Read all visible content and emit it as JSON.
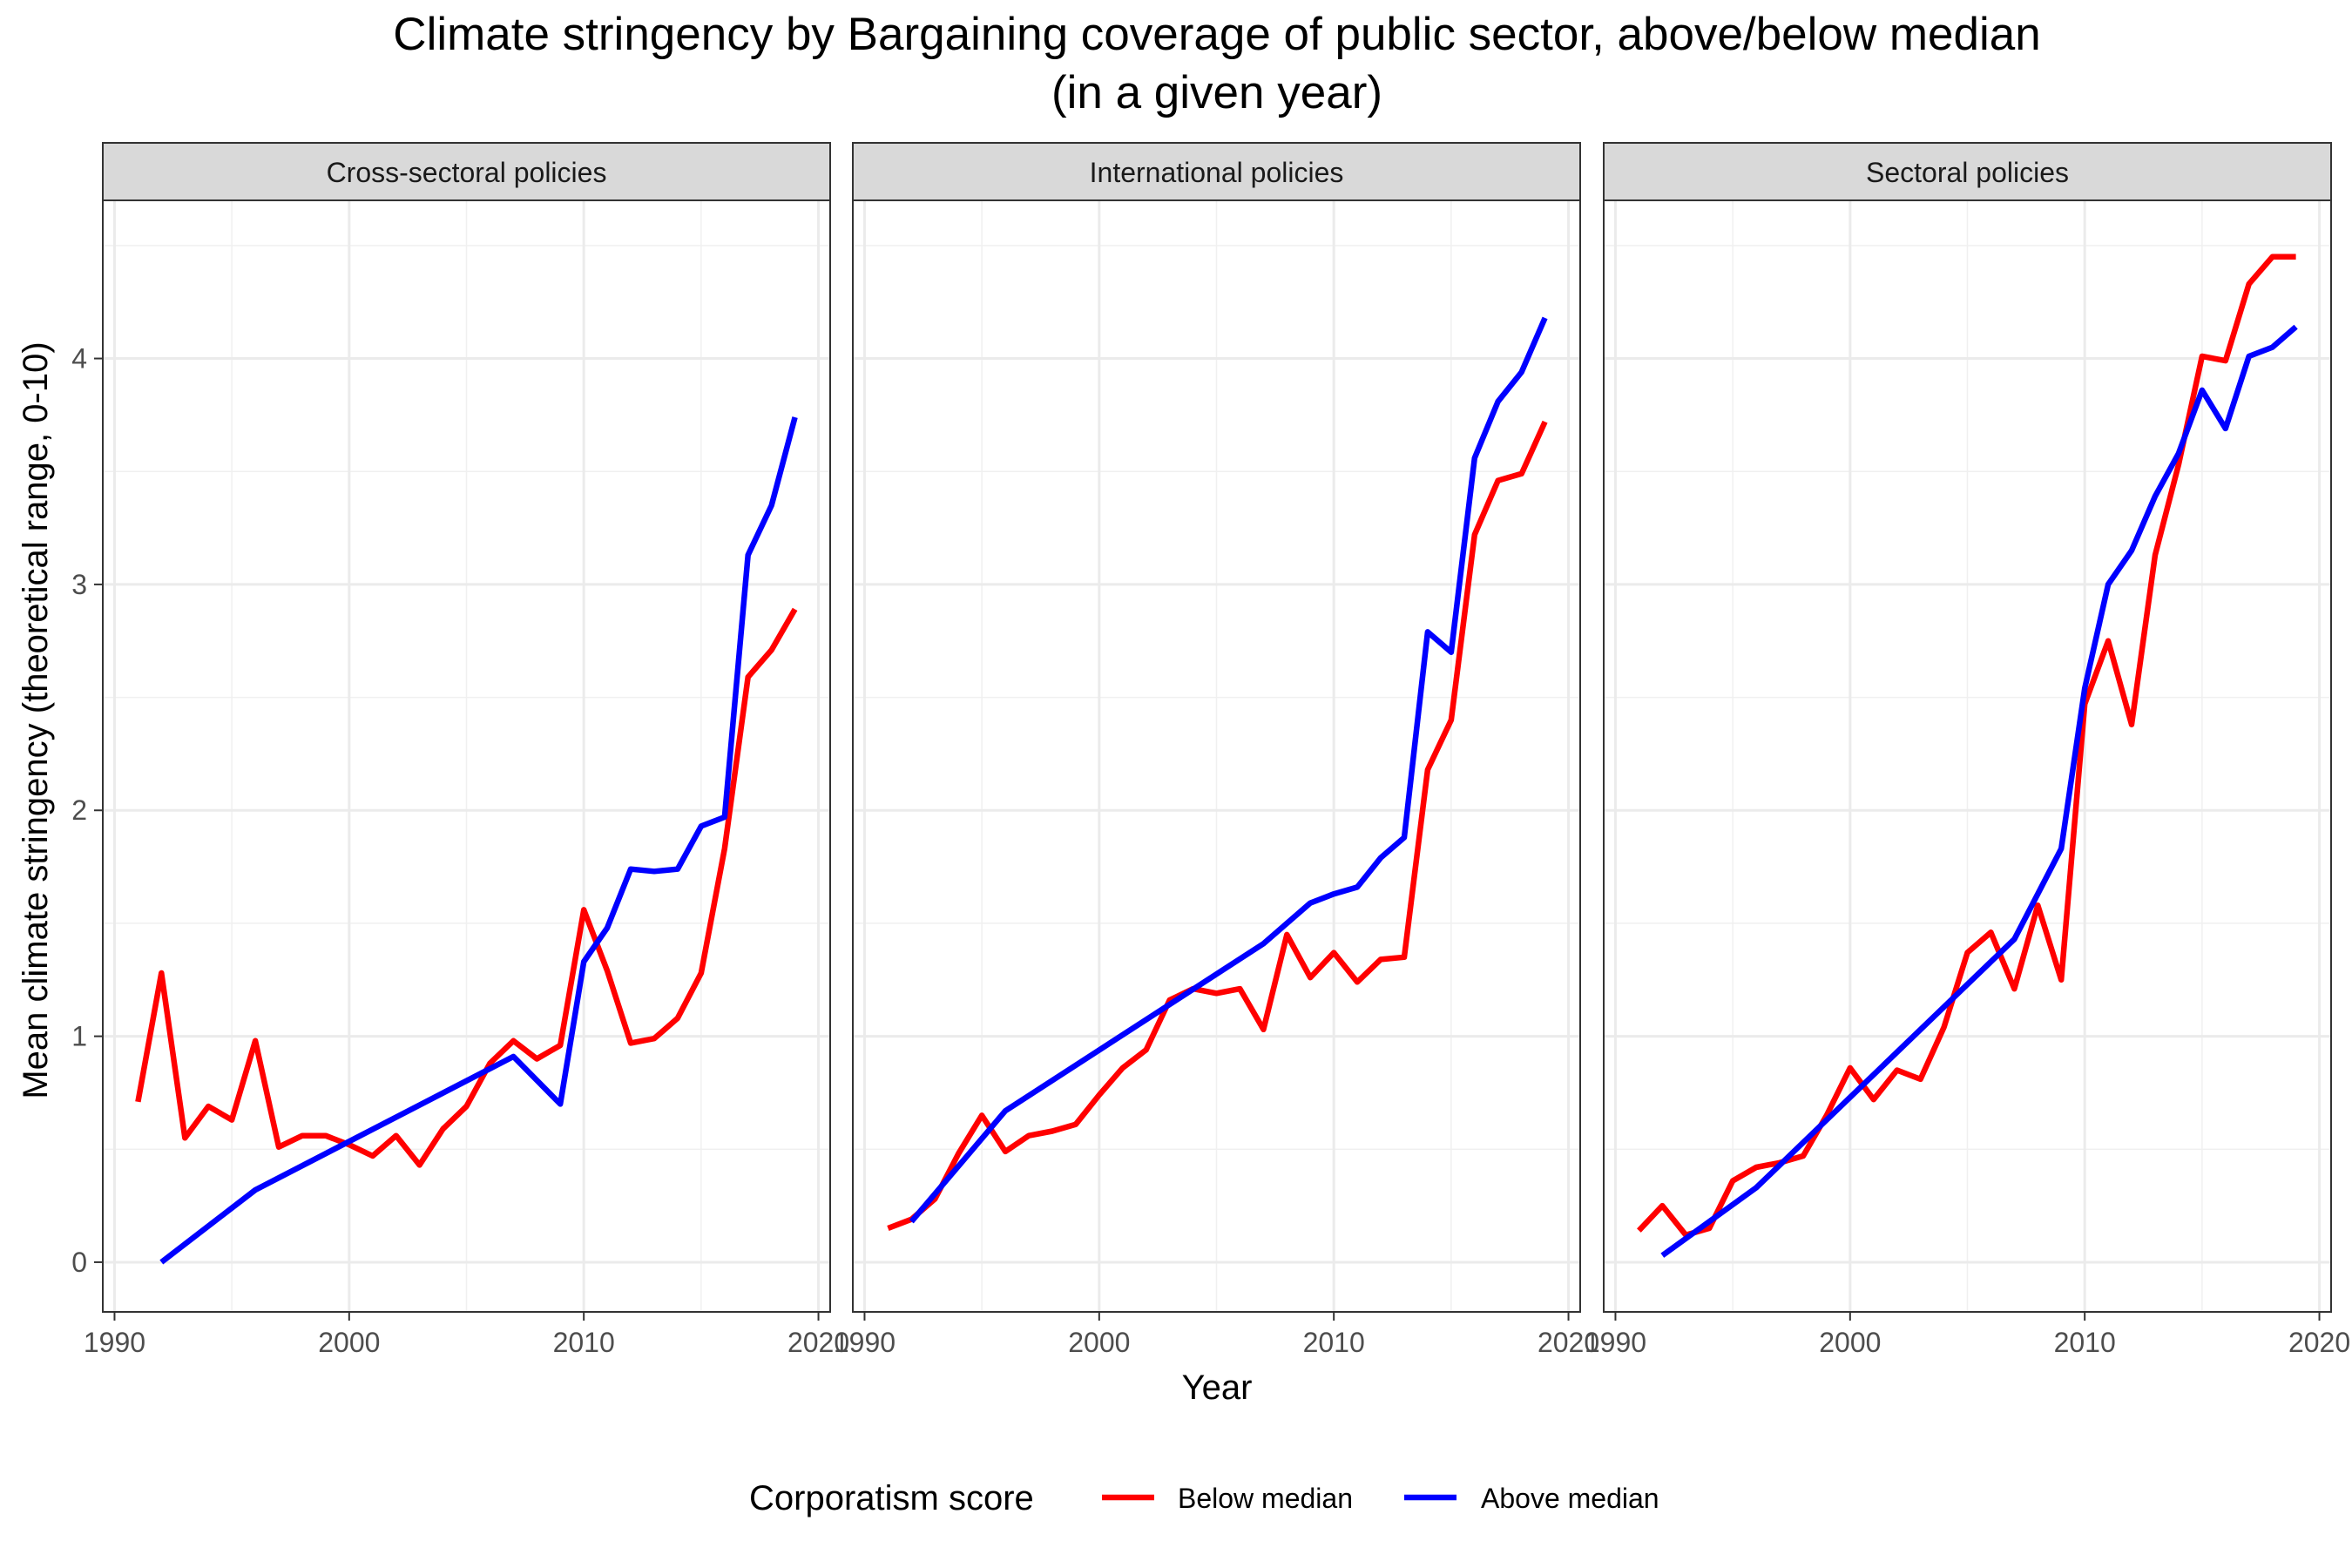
{
  "chart_data": {
    "type": "line",
    "title_line1": "Climate stringency by Bargaining coverage of public sector, above/below median",
    "title_line2": "(in a given year)",
    "xlabel": "Year",
    "ylabel": "Mean climate stringency (theoretical range, 0-10)",
    "xlim": [
      1989.5,
      2020.5
    ],
    "ylim": [
      -0.22,
      4.7
    ],
    "x_ticks": [
      1990,
      2000,
      2010,
      2020
    ],
    "y_ticks": [
      0,
      1,
      2,
      3,
      4
    ],
    "grid": true,
    "legend": {
      "title": "Corporatism score",
      "position": "bottom"
    },
    "colors": {
      "Below median": "#ff0000",
      "Above median": "#0000ff"
    },
    "panels": [
      {
        "title": "Cross-sectoral policies",
        "series": [
          {
            "name": "Below median",
            "x": [
              1991,
              1992,
              1993,
              1994,
              1995,
              1996,
              1997,
              1998,
              1999,
              2000,
              2001,
              2002,
              2003,
              2004,
              2005,
              2006,
              2007,
              2008,
              2009,
              2010,
              2011,
              2012,
              2013,
              2014,
              2015,
              2016,
              2017,
              2018,
              2019
            ],
            "y": [
              0.71,
              1.28,
              0.55,
              0.69,
              0.63,
              0.98,
              0.51,
              0.56,
              0.56,
              0.52,
              0.47,
              0.56,
              0.43,
              0.59,
              0.69,
              0.88,
              0.98,
              0.9,
              0.96,
              1.56,
              1.29,
              0.97,
              0.99,
              1.08,
              1.28,
              1.83,
              2.59,
              2.71,
              2.89
            ]
          },
          {
            "name": "Above median",
            "x": [
              1992,
              1996,
              2007,
              2009,
              2010,
              2011,
              2012,
              2013,
              2014,
              2015,
              2016,
              2017,
              2018,
              2019
            ],
            "y": [
              0.0,
              0.32,
              0.91,
              0.7,
              1.33,
              1.48,
              1.74,
              1.73,
              1.74,
              1.93,
              1.97,
              3.13,
              3.35,
              3.74
            ]
          }
        ]
      },
      {
        "title": "International policies",
        "series": [
          {
            "name": "Below median",
            "x": [
              1991,
              1992,
              1993,
              1994,
              1995,
              1996,
              1997,
              1998,
              1999,
              2000,
              2001,
              2002,
              2003,
              2004,
              2005,
              2006,
              2007,
              2008,
              2009,
              2010,
              2011,
              2012,
              2013,
              2014,
              2015,
              2016,
              2017,
              2018,
              2019
            ],
            "y": [
              0.15,
              0.19,
              0.28,
              0.48,
              0.65,
              0.49,
              0.56,
              0.58,
              0.61,
              0.74,
              0.86,
              0.94,
              1.16,
              1.21,
              1.19,
              1.21,
              1.03,
              1.45,
              1.26,
              1.37,
              1.24,
              1.34,
              1.35,
              2.18,
              2.4,
              3.22,
              3.46,
              3.49,
              3.72
            ]
          },
          {
            "name": "Above median",
            "x": [
              1992,
              1996,
              2007,
              2009,
              2010,
              2011,
              2012,
              2013,
              2014,
              2015,
              2016,
              2017,
              2018,
              2019
            ],
            "y": [
              0.18,
              0.67,
              1.41,
              1.59,
              1.63,
              1.66,
              1.79,
              1.88,
              2.79,
              2.7,
              3.56,
              3.81,
              3.94,
              4.18
            ]
          }
        ]
      },
      {
        "title": "Sectoral policies",
        "series": [
          {
            "name": "Below median",
            "x": [
              1991,
              1992,
              1993,
              1994,
              1995,
              1996,
              1997,
              1998,
              1999,
              2000,
              2001,
              2002,
              2003,
              2004,
              2005,
              2006,
              2007,
              2008,
              2009,
              2010,
              2011,
              2012,
              2013,
              2014,
              2015,
              2016,
              2017,
              2018,
              2019
            ],
            "y": [
              0.14,
              0.25,
              0.12,
              0.15,
              0.36,
              0.42,
              0.44,
              0.47,
              0.65,
              0.86,
              0.72,
              0.85,
              0.81,
              1.04,
              1.37,
              1.46,
              1.21,
              1.58,
              1.25,
              2.47,
              2.75,
              2.38,
              3.13,
              3.53,
              4.01,
              3.99,
              4.33,
              4.45,
              4.45
            ]
          },
          {
            "name": "Above median",
            "x": [
              1992,
              1996,
              2007,
              2009,
              2010,
              2011,
              2012,
              2013,
              2014,
              2015,
              2016,
              2017,
              2018,
              2019
            ],
            "y": [
              0.03,
              0.33,
              1.43,
              1.83,
              2.54,
              3.0,
              3.15,
              3.39,
              3.58,
              3.86,
              3.69,
              4.01,
              4.05,
              4.14
            ]
          }
        ]
      }
    ]
  }
}
